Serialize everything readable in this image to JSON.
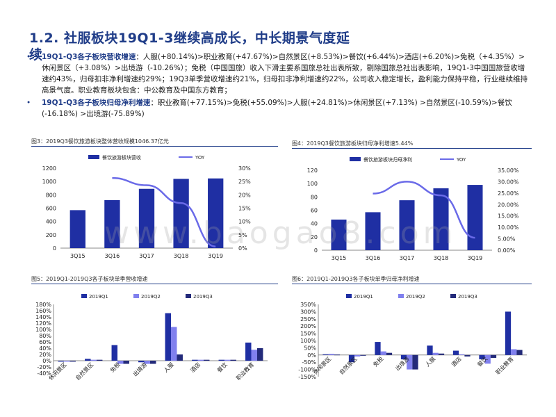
{
  "header": {
    "title": "1.2. 社服板块19Q1-3继续高成长，中长期景气度延",
    "title_wrap": "续"
  },
  "bullets": [
    {
      "lead": "19Q1-Q3各子板块营收增速",
      "text": "：人服(+80.14%)>职业教育(+47.67%)>自然景区(+8.53%)>餐饮(+6.44%)>酒店(+6.20%)>免税（+4.35%）>休闲景区（+3.08%）>出境游（-10.26%）；免税（中国国旅）收入下滑主要系国旅总社出表所致，剔除国旅总社出表影响，19Q1-3中国国旅营收增速约43%，归母扣非净利增速约29%；19Q3单季营收增速约21%，归母扣非净利增速约22%，公司收入稳定增长，盈利能力保持平稳，行业继续维持高景气度。职业教育板块包含：中公教育及中国东方教育；"
    },
    {
      "lead": "19Q1-Q3各子板块归母净利增速",
      "text": "：职业教育(+77.15%)>免税(+55.09%)>人服(+24.81%)>休闲景区(+7.13%) >自然景区(-10.59%)>餐饮(-16.18%) >出境游(-75.89%)"
    }
  ],
  "watermark": "www.baogao8.com",
  "colors": {
    "bar_dark": "#1f2fa3",
    "bar_mid": "#8080ee",
    "bar_navy": "#232a7a",
    "line": "#6a6ae8",
    "title": "#1f3c88"
  },
  "chart_data": [
    {
      "id": "fig3",
      "type": "bar+line",
      "title": "图3：2019Q3餐饮旅游板块整体营收规模1046.37亿元",
      "categories": [
        "3Q15",
        "3Q16",
        "3Q17",
        "3Q18",
        "3Q19"
      ],
      "series": [
        {
          "name": "餐饮旅游板块营收",
          "type": "bar",
          "axis": "left",
          "values": [
            570,
            720,
            890,
            1040,
            1046.37
          ]
        },
        {
          "name": "YOY",
          "type": "line",
          "axis": "right",
          "values": [
            null,
            26.3,
            23.6,
            16.9,
            0.6
          ]
        }
      ],
      "ylim_left": [
        0,
        1200
      ],
      "yticks_left": [
        "0",
        "200",
        "400",
        "600",
        "800",
        "1000",
        "1200"
      ],
      "ylim_right": [
        0,
        30
      ],
      "yticks_right": [
        "0%",
        "5%",
        "10%",
        "15%",
        "20%",
        "25%",
        "30%"
      ],
      "legend_position": "top"
    },
    {
      "id": "fig4",
      "type": "bar+line",
      "title": "图4：2019Q3餐饮旅游板块归母净利增速5.44%",
      "categories": [
        "3Q15",
        "3Q16",
        "3Q17",
        "3Q18",
        "3Q19"
      ],
      "series": [
        {
          "name": "餐饮旅游板块归母净利",
          "type": "bar",
          "axis": "left",
          "values": [
            46,
            57,
            75,
            93,
            98
          ]
        },
        {
          "name": "YOY",
          "type": "line",
          "axis": "right",
          "values": [
            null,
            24.8,
            30.0,
            24.0,
            5.44
          ]
        }
      ],
      "ylim_left": [
        0,
        120
      ],
      "yticks_left": [
        "0",
        "20",
        "40",
        "60",
        "80",
        "100",
        "120"
      ],
      "ylim_right": [
        0,
        35
      ],
      "yticks_right": [
        "0.00%",
        "5.00%",
        "10.00%",
        "15.00%",
        "20.00%",
        "25.00%",
        "30.00%",
        "35.00%"
      ],
      "legend_position": "top"
    },
    {
      "id": "fig5",
      "type": "bar",
      "title": "图5：2019Q1-2019Q3各子板块单季营收增速",
      "categories": [
        "休闲景区",
        "自然景区",
        "免税",
        "出境游",
        "人服",
        "酒店",
        "餐饮",
        "职业教育"
      ],
      "series": [
        {
          "name": "2019Q1",
          "values": [
            -3,
            6,
            50,
            -5,
            152,
            3,
            3,
            58
          ]
        },
        {
          "name": "2019Q2",
          "values": [
            -3,
            3,
            -10,
            -10,
            108,
            3,
            3,
            35
          ]
        },
        {
          "name": "2019Q3",
          "values": [
            -3,
            3,
            -10,
            -10,
            20,
            3,
            3,
            40
          ]
        }
      ],
      "ylim": [
        -40,
        180
      ],
      "yticks": [
        "-40%",
        "-20%",
        "0%",
        "20%",
        "40%",
        "60%",
        "80%",
        "100%",
        "120%",
        "140%",
        "160%",
        "180%"
      ],
      "legend_position": "top"
    },
    {
      "id": "fig6",
      "type": "bar",
      "title": "图6：2019Q1-2019Q3各子板块单季归母净利增速",
      "categories": [
        "休闲景区",
        "自然景区",
        "免税",
        "出境游",
        "人服",
        "酒店",
        "餐饮",
        "职业教育"
      ],
      "series": [
        {
          "name": "2019Q1",
          "values": [
            5,
            -50,
            90,
            -30,
            65,
            30,
            -30,
            300
          ]
        },
        {
          "name": "2019Q2",
          "values": [
            8,
            -10,
            25,
            -100,
            15,
            5,
            -60,
            40
          ]
        },
        {
          "name": "2019Q3",
          "values": [
            3,
            -5,
            15,
            -100,
            10,
            -10,
            -20,
            35
          ]
        }
      ],
      "ylim": [
        -150,
        350
      ],
      "yticks": [
        "-150%",
        "-100%",
        "-50%",
        "0%",
        "50%",
        "100%",
        "150%",
        "200%",
        "250%",
        "300%",
        "350%"
      ],
      "legend_position": "top"
    }
  ]
}
